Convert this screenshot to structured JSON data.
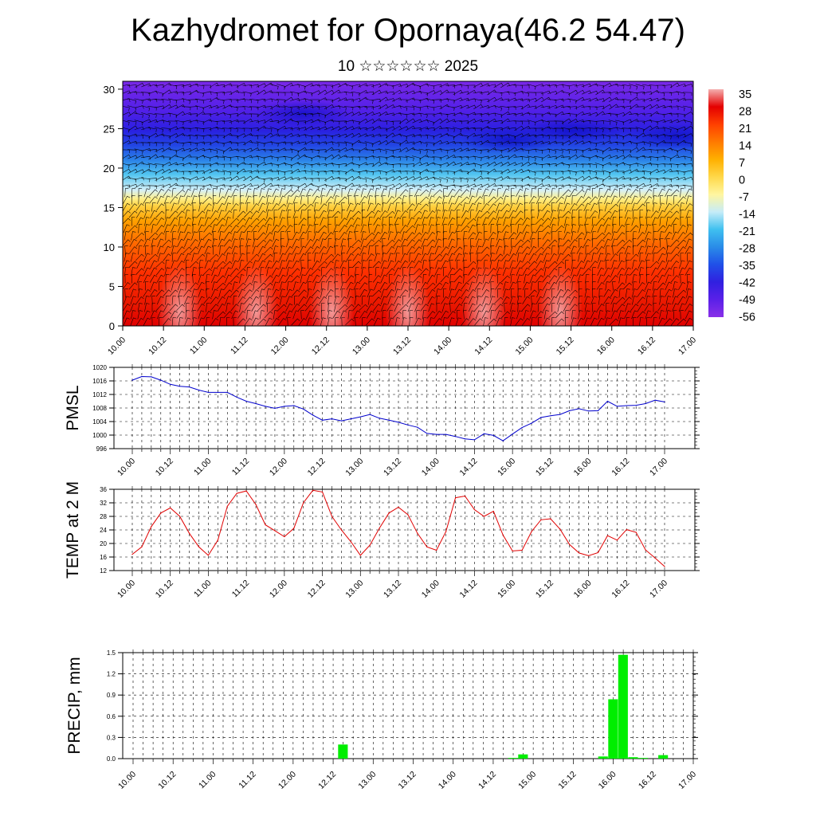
{
  "header": {
    "title": "Kazhydromet for Opornaya(46.2 54.47)",
    "subtitle": "10 ☆☆☆☆☆☆ 2025"
  },
  "time_ticks": [
    "10.00",
    "10.12",
    "11.00",
    "11.12",
    "12.00",
    "12.12",
    "13.00",
    "13.12",
    "14.00",
    "14.12",
    "15.00",
    "15.12",
    "16.00",
    "16.12",
    "17.00"
  ],
  "colorbar": {
    "labels": [
      "35",
      "28",
      "21",
      "14",
      "7",
      "0",
      "-7",
      "-14",
      "-21",
      "-28",
      "-35",
      "-42",
      "-49",
      "-56"
    ],
    "colors": [
      "#f4b0b0",
      "#e40000",
      "#ff4000",
      "#ff7a00",
      "#ffb000",
      "#ffd84a",
      "#fff6a0",
      "#c6ecf8",
      "#40c0f0",
      "#2a8ce8",
      "#2050e8",
      "#3020e0",
      "#5a20e8",
      "#8a30e8"
    ]
  },
  "chart_data": [
    {
      "type": "heatmap",
      "title": "",
      "xlabel": "",
      "ylabel": "",
      "x": [
        "10.00",
        "10.12",
        "11.00",
        "11.12",
        "12.00",
        "12.12",
        "13.00",
        "13.12",
        "14.00",
        "14.12",
        "15.00",
        "15.12",
        "16.00",
        "16.12",
        "17.00"
      ],
      "ylim": [
        0,
        31
      ],
      "yticks": [
        "0",
        "5",
        "10",
        "15",
        "20",
        "25",
        "30"
      ],
      "colorbar_range": [
        -56,
        35
      ],
      "overlay": "wind barbs"
    },
    {
      "type": "line",
      "ylabel": "PMSL",
      "ylim": [
        996,
        1020
      ],
      "yticks": [
        "996",
        "1000",
        "1004",
        "1008",
        "1012",
        "1016",
        "1020"
      ],
      "color": "#0000cc",
      "x_hours": [
        0,
        3,
        6,
        9,
        12,
        15,
        18,
        21,
        24,
        27,
        30,
        33,
        36,
        39,
        42,
        45,
        48,
        51,
        54,
        57,
        60,
        63,
        66,
        69,
        72,
        75,
        78,
        81,
        84,
        87,
        90,
        93,
        96,
        99,
        102,
        105,
        108,
        111,
        114,
        117,
        120,
        123,
        126,
        129,
        132,
        135,
        138,
        141,
        144,
        147,
        150,
        153,
        156,
        159,
        162,
        165,
        168
      ],
      "values": [
        1016.2,
        1017.3,
        1017.2,
        1016.2,
        1015.0,
        1014.4,
        1014.2,
        1013.3,
        1012.6,
        1012.6,
        1012.6,
        1011.2,
        1010.0,
        1009.3,
        1008.5,
        1007.9,
        1008.5,
        1008.7,
        1007.7,
        1005.9,
        1004.4,
        1004.8,
        1004.2,
        1004.8,
        1005.4,
        1006.1,
        1005.0,
        1004.4,
        1003.8,
        1003.0,
        1002.3,
        1000.5,
        1000.2,
        1000.2,
        999.6,
        998.9,
        998.6,
        1000.4,
        999.9,
        998.3,
        1000.3,
        1002.2,
        1003.5,
        1005.2,
        1005.7,
        1006.1,
        1007.2,
        1007.8,
        1007.1,
        1007.2,
        1010.0,
        1008.5,
        1008.7,
        1008.8,
        1009.3,
        1010.3,
        1009.8
      ]
    },
    {
      "type": "line",
      "ylabel": "TEMP at 2 M",
      "ylim": [
        12,
        36
      ],
      "yticks": [
        "12",
        "16",
        "20",
        "24",
        "28",
        "32",
        "36"
      ],
      "color": "#e00000",
      "x_hours": [
        0,
        3,
        6,
        9,
        12,
        15,
        18,
        21,
        24,
        27,
        30,
        33,
        36,
        39,
        42,
        45,
        48,
        51,
        54,
        57,
        60,
        63,
        66,
        69,
        72,
        75,
        78,
        81,
        84,
        87,
        90,
        93,
        96,
        99,
        102,
        105,
        108,
        111,
        114,
        117,
        120,
        123,
        126,
        129,
        132,
        135,
        138,
        141,
        144,
        147,
        150,
        153,
        156,
        159,
        162,
        165,
        168
      ],
      "values": [
        16.8,
        19.0,
        25.0,
        29.0,
        30.5,
        28.0,
        23.0,
        19.0,
        16.5,
        21.0,
        31.0,
        34.8,
        35.5,
        31.5,
        25.5,
        23.8,
        22.0,
        24.5,
        32.0,
        35.7,
        35.2,
        28.0,
        24.0,
        20.5,
        16.5,
        19.5,
        24.5,
        29.0,
        30.7,
        28.5,
        23.0,
        19.0,
        18.0,
        23.5,
        33.5,
        34.0,
        30.0,
        28.0,
        29.5,
        22.5,
        17.8,
        18.0,
        23.5,
        27.0,
        27.3,
        24.2,
        19.7,
        17.2,
        16.4,
        17.3,
        22.3,
        21.0,
        24.1,
        23.3,
        18.1,
        15.7,
        13.2
      ]
    },
    {
      "type": "bar",
      "ylabel": "PRECIP, mm",
      "ylim": [
        0,
        1.5
      ],
      "yticks": [
        "0.0",
        "0.3",
        "0.6",
        "0.9",
        "1.2",
        "1.5"
      ],
      "color": "#00ee00",
      "bar_hours": [
        63,
        114,
        117,
        141,
        144,
        147,
        150,
        153,
        159
      ],
      "values": [
        0.2,
        0.01,
        0.06,
        0.03,
        0.84,
        1.47,
        0.02,
        0.01,
        0.05
      ]
    }
  ]
}
